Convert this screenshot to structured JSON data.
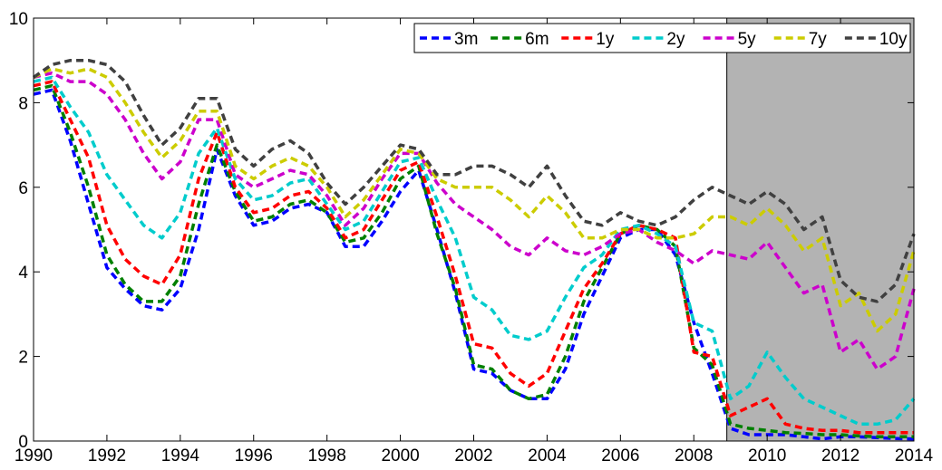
{
  "chart_data": {
    "type": "line",
    "title": "",
    "xlabel": "",
    "ylabel": "",
    "xlim": [
      1990,
      2014
    ],
    "ylim": [
      0,
      10
    ],
    "xticks": [
      "1990",
      "1992",
      "1994",
      "1996",
      "1998",
      "2000",
      "2002",
      "2004",
      "2006",
      "2008",
      "2010",
      "2012",
      "2014"
    ],
    "yticks": [
      "0",
      "2",
      "4",
      "6",
      "8",
      "10"
    ],
    "grid": false,
    "legend_position": "top-right",
    "shaded_region": {
      "x_start": 2008.9,
      "x_end": 2014,
      "color": "#b3b3b3"
    },
    "x": [
      1990,
      1990.5,
      1991,
      1991.5,
      1992,
      1992.5,
      1993,
      1993.5,
      1994,
      1994.5,
      1995,
      1995.5,
      1996,
      1996.5,
      1997,
      1997.5,
      1998,
      1998.5,
      1999,
      1999.5,
      2000,
      2000.5,
      2001,
      2001.5,
      2002,
      2002.5,
      2003,
      2003.5,
      2004,
      2004.5,
      2005,
      2005.5,
      2006,
      2006.5,
      2007,
      2007.5,
      2008,
      2008.5,
      2009,
      2009.5,
      2010,
      2010.5,
      2011,
      2011.5,
      2012,
      2012.5,
      2013,
      2013.5,
      2014
    ],
    "series": [
      {
        "name": "3m",
        "color": "#0000ff",
        "values": [
          8.2,
          8.3,
          7.1,
          5.6,
          4.1,
          3.6,
          3.2,
          3.1,
          3.6,
          5.0,
          6.9,
          5.8,
          5.1,
          5.2,
          5.5,
          5.6,
          5.4,
          4.6,
          4.6,
          5.2,
          5.9,
          6.4,
          5.0,
          3.5,
          1.7,
          1.6,
          1.2,
          1.0,
          1.0,
          1.7,
          3.0,
          3.9,
          4.8,
          5.0,
          5.0,
          4.4,
          2.8,
          1.6,
          0.3,
          0.15,
          0.15,
          0.15,
          0.1,
          0.05,
          0.1,
          0.1,
          0.08,
          0.06,
          0.05
        ]
      },
      {
        "name": "6m",
        "color": "#008000",
        "values": [
          8.3,
          8.4,
          7.3,
          6.0,
          4.4,
          3.7,
          3.3,
          3.3,
          3.9,
          5.6,
          7.0,
          5.9,
          5.2,
          5.3,
          5.6,
          5.7,
          5.4,
          4.7,
          4.8,
          5.4,
          6.2,
          6.5,
          4.9,
          3.6,
          1.8,
          1.7,
          1.2,
          1.0,
          1.1,
          2.0,
          3.3,
          4.1,
          4.9,
          5.1,
          5.0,
          4.6,
          2.2,
          1.8,
          0.4,
          0.3,
          0.25,
          0.2,
          0.18,
          0.15,
          0.15,
          0.12,
          0.1,
          0.1,
          0.1
        ]
      },
      {
        "name": "1y",
        "color": "#ff0000",
        "values": [
          8.4,
          8.5,
          7.6,
          6.7,
          5.1,
          4.3,
          3.9,
          3.7,
          4.4,
          6.2,
          7.3,
          6.0,
          5.4,
          5.5,
          5.8,
          5.9,
          5.5,
          4.8,
          5.0,
          5.7,
          6.4,
          6.6,
          5.3,
          3.9,
          2.3,
          2.2,
          1.6,
          1.3,
          1.6,
          2.6,
          3.6,
          4.2,
          4.9,
          5.1,
          5.0,
          4.8,
          2.1,
          2.0,
          0.6,
          0.8,
          1.0,
          0.4,
          0.3,
          0.25,
          0.25,
          0.2,
          0.2,
          0.2,
          0.2
        ]
      },
      {
        "name": "2y",
        "color": "#00cccc",
        "values": [
          8.5,
          8.6,
          7.9,
          7.3,
          6.3,
          5.7,
          5.1,
          4.8,
          5.4,
          6.8,
          7.4,
          6.2,
          5.7,
          5.8,
          6.1,
          6.2,
          5.6,
          5.0,
          5.2,
          5.9,
          6.6,
          6.7,
          5.7,
          4.8,
          3.4,
          3.1,
          2.5,
          2.4,
          2.6,
          3.4,
          4.1,
          4.4,
          5.0,
          5.1,
          4.9,
          4.6,
          2.8,
          2.6,
          1.0,
          1.3,
          2.1,
          1.5,
          1.0,
          0.8,
          0.6,
          0.4,
          0.4,
          0.5,
          1.0
        ]
      },
      {
        "name": "5y",
        "color": "#cc00cc",
        "values": [
          8.6,
          8.7,
          8.5,
          8.5,
          8.2,
          7.6,
          6.8,
          6.2,
          6.6,
          7.6,
          7.6,
          6.3,
          6.0,
          6.2,
          6.4,
          6.3,
          5.8,
          5.1,
          5.5,
          6.2,
          6.8,
          6.8,
          6.1,
          5.6,
          5.3,
          5.0,
          4.6,
          4.4,
          4.8,
          4.5,
          4.4,
          4.6,
          4.9,
          5.0,
          4.7,
          4.5,
          4.2,
          4.5,
          4.4,
          4.3,
          4.7,
          4.1,
          3.5,
          3.7,
          2.1,
          2.4,
          1.7,
          2.0,
          3.6
        ]
      },
      {
        "name": "7y",
        "color": "#cccc00",
        "values": [
          8.6,
          8.8,
          8.7,
          8.8,
          8.6,
          8.0,
          7.3,
          6.7,
          7.1,
          7.8,
          7.8,
          6.5,
          6.2,
          6.5,
          6.7,
          6.5,
          6.0,
          5.3,
          5.7,
          6.3,
          6.9,
          6.8,
          6.2,
          6.0,
          6.0,
          6.0,
          5.7,
          5.3,
          5.8,
          5.4,
          4.8,
          4.8,
          5.0,
          5.0,
          4.8,
          4.8,
          4.9,
          5.3,
          5.3,
          5.1,
          5.5,
          5.1,
          4.5,
          4.8,
          3.2,
          3.5,
          2.6,
          3.0,
          4.5
        ]
      },
      {
        "name": "10y",
        "color": "#404040",
        "values": [
          8.6,
          8.9,
          9.0,
          9.0,
          8.9,
          8.5,
          7.7,
          7.0,
          7.4,
          8.1,
          8.1,
          6.9,
          6.5,
          6.9,
          7.1,
          6.8,
          6.1,
          5.6,
          6.0,
          6.5,
          7.0,
          6.9,
          6.3,
          6.3,
          6.5,
          6.5,
          6.3,
          6.0,
          6.5,
          5.8,
          5.2,
          5.1,
          5.4,
          5.2,
          5.1,
          5.3,
          5.7,
          6.0,
          5.8,
          5.6,
          5.9,
          5.6,
          5.0,
          5.3,
          3.8,
          3.4,
          3.3,
          3.7,
          4.9
        ]
      }
    ]
  }
}
